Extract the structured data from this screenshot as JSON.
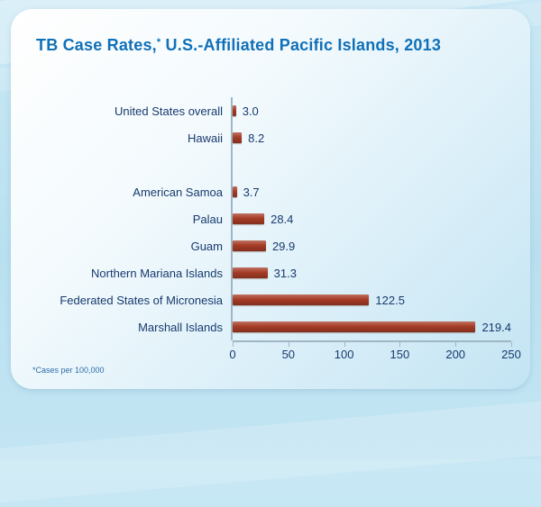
{
  "title": {
    "part1": "TB Case Rates,",
    "asterisk": "*",
    "part2": " U.S.-Affiliated Pacific Islands, 2013"
  },
  "footnote": "*Cases per 100,000",
  "colors": {
    "bar": "#a63c26",
    "axis": "#9fb6c4",
    "text_navy": "#173a6d",
    "title_blue": "#1070b8",
    "card_bg_start": "#ffffff",
    "card_bg_end": "#c3e4f3",
    "page_bg": "#bfe3f2"
  },
  "chart_data": {
    "type": "bar",
    "orientation": "horizontal",
    "title": "TB Case Rates,* U.S.-Affiliated Pacific Islands, 2013",
    "categories": [
      "United States overall",
      "Hawaii",
      "",
      "American Samoa",
      "Palau",
      "Guam",
      "Northern Mariana Islands",
      "Federated States of Micronesia",
      "Marshall Islands"
    ],
    "values": [
      3.0,
      8.2,
      null,
      3.7,
      28.4,
      29.9,
      31.3,
      122.5,
      219.4
    ],
    "value_labels": [
      "3.0",
      "8.2",
      "",
      "3.7",
      "28.4",
      "29.9",
      "31.3",
      "122.5",
      "219.4"
    ],
    "x_ticks": [
      0,
      50,
      100,
      150,
      200,
      250
    ],
    "xlim": [
      0,
      250
    ],
    "xlabel": "",
    "ylabel": "",
    "grid": false,
    "legend": "none",
    "bar_color": "#a63c26",
    "footnote": "*Cases per 100,000"
  }
}
